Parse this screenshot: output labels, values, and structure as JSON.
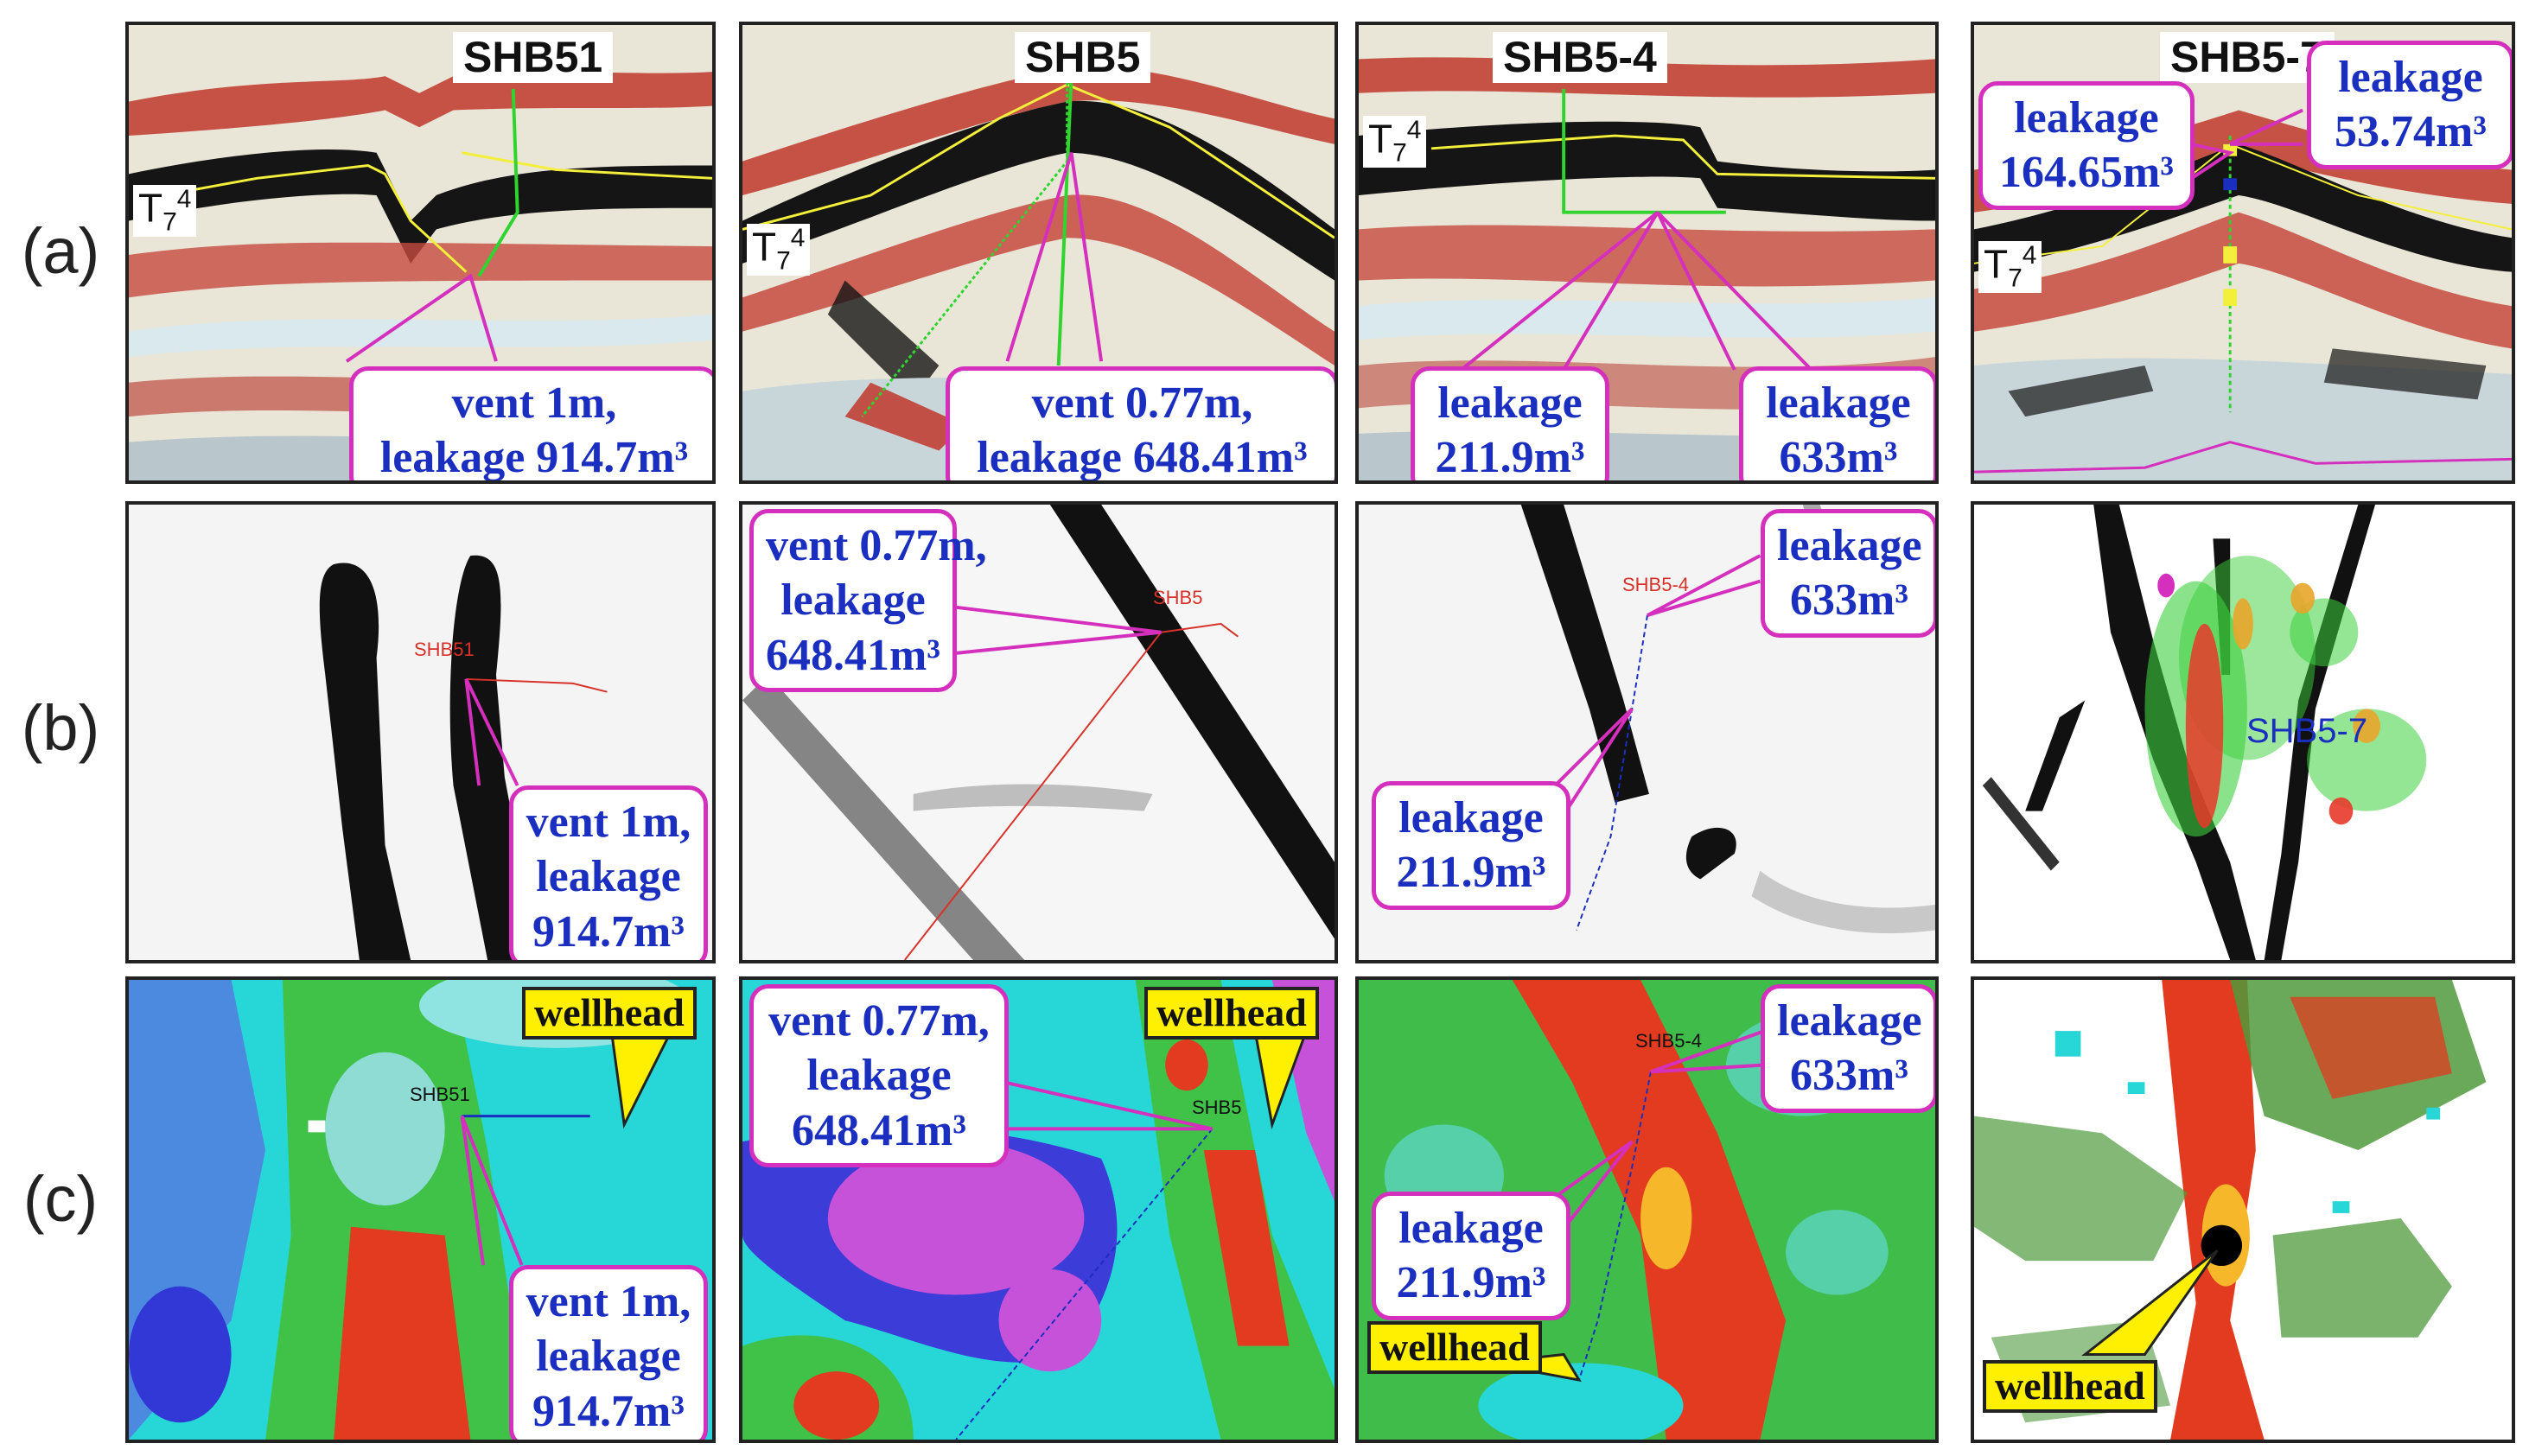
{
  "row_labels": [
    "(a)",
    "(b)",
    "(c)"
  ],
  "wells": {
    "shb51": "SHB51",
    "shb5": "SHB5",
    "shb54": "SHB5-4",
    "shb57": "SHB5-7"
  },
  "horizon": {
    "base": "T",
    "sub": "7",
    "sup": "4"
  },
  "callouts": {
    "shb51_a": [
      "vent 1m,",
      "leakage 914.7m³"
    ],
    "shb51_bc": [
      "vent 1m,",
      "leakage",
      "914.7m³"
    ],
    "shb5_a": [
      "vent 0.77m,",
      "leakage 648.41m³"
    ],
    "shb5_bc": [
      "vent 0.77m,",
      "leakage",
      "648.41m³"
    ],
    "shb54_l": [
      "leakage",
      "211.9m³"
    ],
    "shb54_r": [
      "leakage",
      "633m³"
    ],
    "shb57_l": [
      "leakage",
      "164.65m³"
    ],
    "shb57_r": [
      "leakage",
      "53.74m³"
    ]
  },
  "wellhead_label": "wellhead",
  "colors": {
    "callout_border": "#d52fbd",
    "callout_text": "#1a2fbf",
    "wellhead_fill": "#ffef00"
  }
}
